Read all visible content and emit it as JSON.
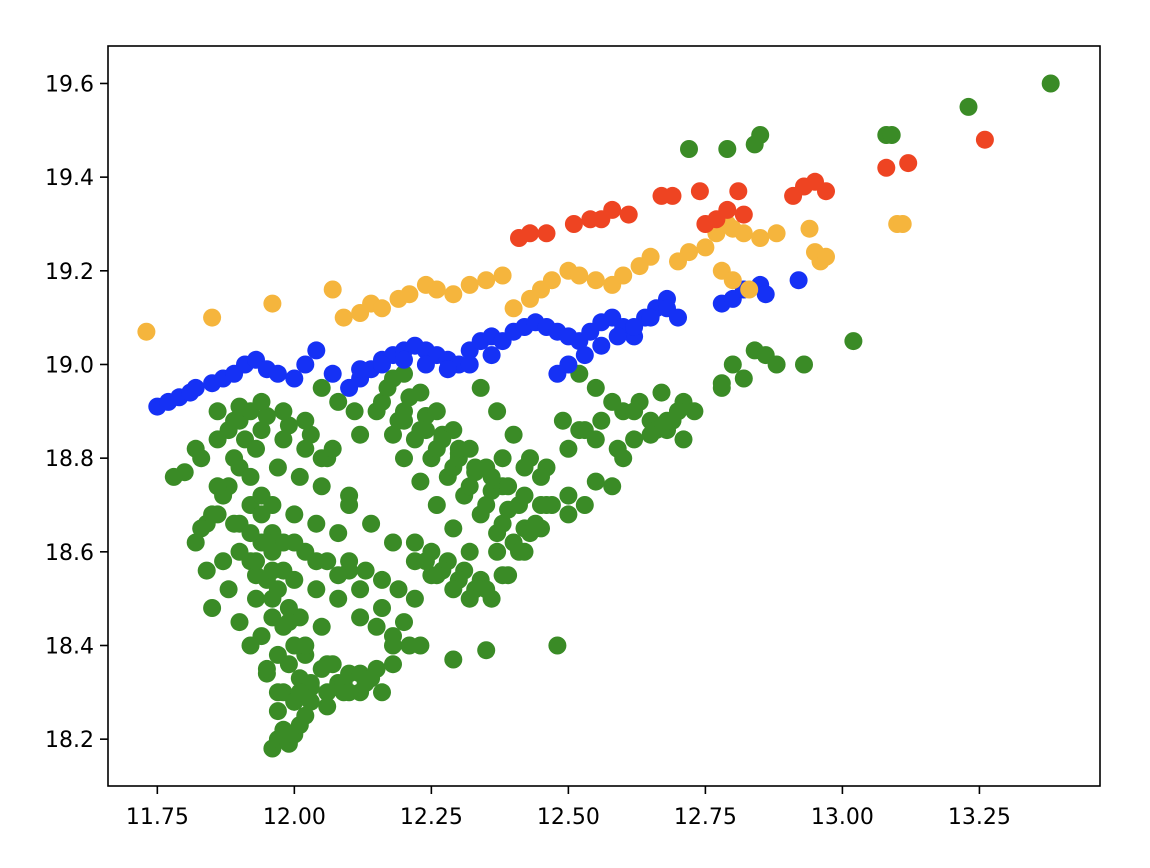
{
  "chart_data": {
    "type": "scatter",
    "title": "",
    "xlabel": "",
    "ylabel": "",
    "xlim": [
      11.66,
      13.47
    ],
    "ylim": [
      18.1,
      19.68
    ],
    "grid": false,
    "legend": "none",
    "x_ticks": [
      {
        "value": 11.75,
        "label": "11.75"
      },
      {
        "value": 12.0,
        "label": "12.00"
      },
      {
        "value": 12.25,
        "label": "12.25"
      },
      {
        "value": 12.5,
        "label": "12.50"
      },
      {
        "value": 12.75,
        "label": "12.75"
      },
      {
        "value": 13.0,
        "label": "13.00"
      },
      {
        "value": 13.25,
        "label": "13.25"
      }
    ],
    "y_ticks": [
      {
        "value": 18.2,
        "label": "18.2"
      },
      {
        "value": 18.4,
        "label": "18.4"
      },
      {
        "value": 18.6,
        "label": "18.6"
      },
      {
        "value": 18.8,
        "label": "18.8"
      },
      {
        "value": 19.0,
        "label": "19.0"
      },
      {
        "value": 19.2,
        "label": "19.2"
      },
      {
        "value": 19.4,
        "label": "19.4"
      },
      {
        "value": 19.6,
        "label": "19.6"
      }
    ],
    "series": [
      {
        "color": "#3a8b26",
        "x": [
          11.96,
          11.97,
          11.98,
          11.99,
          12.0,
          12.01,
          11.97,
          11.98,
          12.0,
          12.02,
          11.95,
          11.97,
          11.99,
          12.01,
          12.03,
          11.94,
          11.96,
          11.98,
          12.0,
          12.02,
          11.93,
          11.95,
          11.97,
          11.99,
          12.01,
          12.05,
          11.92,
          11.94,
          11.96,
          11.98,
          12.0,
          12.04,
          12.08,
          11.9,
          11.92,
          11.94,
          11.96,
          11.98,
          12.02,
          12.06,
          12.1,
          11.88,
          11.9,
          11.92,
          11.94,
          11.96,
          12.0,
          12.04,
          12.08,
          11.85,
          11.87,
          11.89,
          11.91,
          11.93,
          11.97,
          12.01,
          12.05,
          12.1,
          11.82,
          11.84,
          11.86,
          11.88,
          11.9,
          11.94,
          11.98,
          12.02,
          12.06,
          11.8,
          11.83,
          11.86,
          11.89,
          11.92,
          11.95,
          11.99,
          12.03,
          11.78,
          11.82,
          11.86,
          11.9,
          11.94,
          11.98,
          12.02,
          11.85,
          11.88,
          11.9,
          11.92,
          11.95,
          11.97,
          12.0,
          12.03,
          12.06,
          12.09,
          11.93,
          11.96,
          11.99,
          12.02,
          12.05,
          12.08,
          12.12,
          12.15,
          12.18,
          12.0,
          12.04,
          12.08,
          12.12,
          12.16,
          12.2,
          12.1,
          12.14,
          12.18,
          12.22,
          12.25,
          12.15,
          12.18,
          12.2,
          12.23,
          12.26,
          12.29,
          12.32,
          12.16,
          12.19,
          12.22,
          12.25,
          12.28,
          12.31,
          12.34,
          12.37,
          12.17,
          12.2,
          12.23,
          12.26,
          12.29,
          12.32,
          12.35,
          12.38,
          12.18,
          12.21,
          12.24,
          12.27,
          12.3,
          12.33,
          12.36,
          12.39,
          12.42,
          12.2,
          12.23,
          12.26,
          12.29,
          12.32,
          12.35,
          12.38,
          12.41,
          12.44,
          12.22,
          12.25,
          12.28,
          12.31,
          12.34,
          12.37,
          12.4,
          12.43,
          12.24,
          12.27,
          12.3,
          12.33,
          12.36,
          12.39,
          12.42,
          12.45,
          12.26,
          12.29,
          12.32,
          12.35,
          12.38,
          12.41,
          12.44,
          12.47,
          12.34,
          12.37,
          12.4,
          12.43,
          12.46,
          12.5,
          12.53,
          12.56,
          12.6,
          12.63,
          12.67,
          12.7,
          12.52,
          12.55,
          12.58,
          12.62,
          12.65,
          12.68,
          12.71,
          12.49,
          12.52,
          12.55,
          12.59,
          12.62,
          12.66,
          12.69,
          12.3,
          12.33,
          12.36,
          12.39,
          12.42,
          12.45,
          12.1,
          12.13,
          12.16,
          12.19,
          12.22,
          12.12,
          12.15,
          12.18,
          12.21,
          12.07,
          12.1,
          12.13,
          12.16,
          12.03,
          12.06,
          12.09,
          12.12,
          12.05,
          12.08,
          12.11,
          12.23,
          12.29,
          12.35,
          12.48,
          12.5,
          12.53,
          12.58,
          12.68,
          12.71,
          12.73,
          12.78,
          12.8,
          12.84,
          12.86,
          12.93,
          13.02,
          12.72,
          12.79,
          12.84,
          12.85,
          13.08,
          13.09,
          13.23,
          13.38,
          12.78,
          12.82,
          12.88,
          12.7,
          12.46,
          12.5,
          12.55,
          12.6,
          12.65,
          12.05,
          12.07,
          12.12,
          12.2,
          12.24,
          12.27,
          12.3,
          12.38,
          12.42,
          12.45,
          12.01,
          12.06,
          12.1,
          12.14,
          12.18,
          11.83,
          11.86,
          11.89,
          11.92,
          11.95,
          11.84,
          11.87,
          11.9,
          11.93,
          11.96
        ],
        "y": [
          18.18,
          18.2,
          18.22,
          18.19,
          18.21,
          18.23,
          18.26,
          18.3,
          18.28,
          18.25,
          18.34,
          18.38,
          18.36,
          18.33,
          18.31,
          18.42,
          18.46,
          18.44,
          18.4,
          18.38,
          18.5,
          18.54,
          18.52,
          18.48,
          18.46,
          18.44,
          18.58,
          18.62,
          18.6,
          18.56,
          18.54,
          18.52,
          18.5,
          18.66,
          18.7,
          18.68,
          18.64,
          18.62,
          18.6,
          18.58,
          18.56,
          18.74,
          18.78,
          18.76,
          18.72,
          18.7,
          18.68,
          18.66,
          18.64,
          18.68,
          18.72,
          18.8,
          18.84,
          18.82,
          18.78,
          18.76,
          18.74,
          18.72,
          18.62,
          18.66,
          18.74,
          18.86,
          18.88,
          18.86,
          18.84,
          18.82,
          18.8,
          18.77,
          18.8,
          18.84,
          18.88,
          18.9,
          18.89,
          18.87,
          18.85,
          18.76,
          18.82,
          18.9,
          18.91,
          18.92,
          18.9,
          18.88,
          18.48,
          18.52,
          18.45,
          18.4,
          18.35,
          18.3,
          18.28,
          18.32,
          18.36,
          18.3,
          18.55,
          18.5,
          18.45,
          18.4,
          18.35,
          18.32,
          18.3,
          18.35,
          18.4,
          18.62,
          18.58,
          18.55,
          18.52,
          18.48,
          18.45,
          18.7,
          18.66,
          18.62,
          18.58,
          18.55,
          18.9,
          18.85,
          18.8,
          18.75,
          18.7,
          18.65,
          18.6,
          18.92,
          18.88,
          18.84,
          18.8,
          18.76,
          18.72,
          18.68,
          18.64,
          18.95,
          18.9,
          18.86,
          18.82,
          18.78,
          18.74,
          18.7,
          18.66,
          18.97,
          18.93,
          18.89,
          18.85,
          18.81,
          18.77,
          18.73,
          18.69,
          18.65,
          18.98,
          18.94,
          18.9,
          18.86,
          18.82,
          18.78,
          18.74,
          18.7,
          18.66,
          18.62,
          18.6,
          18.58,
          18.56,
          18.54,
          18.6,
          18.62,
          18.64,
          18.58,
          18.56,
          18.54,
          18.52,
          18.5,
          18.55,
          18.6,
          18.65,
          18.55,
          18.52,
          18.5,
          18.52,
          18.55,
          18.6,
          18.65,
          18.7,
          18.95,
          18.9,
          18.85,
          18.8,
          18.78,
          18.82,
          18.86,
          18.88,
          18.9,
          18.92,
          18.94,
          18.9,
          18.98,
          18.95,
          18.92,
          18.9,
          18.88,
          18.86,
          18.84,
          18.88,
          18.86,
          18.84,
          18.82,
          18.84,
          18.86,
          18.88,
          18.8,
          18.78,
          18.76,
          18.74,
          18.72,
          18.7,
          18.58,
          18.56,
          18.54,
          18.52,
          18.5,
          18.46,
          18.44,
          18.42,
          18.4,
          18.36,
          18.34,
          18.32,
          18.3,
          18.28,
          18.3,
          18.32,
          18.34,
          18.95,
          18.92,
          18.9,
          18.4,
          18.37,
          18.39,
          18.4,
          18.72,
          18.7,
          18.74,
          18.88,
          18.92,
          18.9,
          18.96,
          19.0,
          19.03,
          19.02,
          19.0,
          19.05,
          19.46,
          19.46,
          19.47,
          19.49,
          19.49,
          19.49,
          19.55,
          19.6,
          18.95,
          18.97,
          19.0,
          18.9,
          18.7,
          18.68,
          18.75,
          18.8,
          18.85,
          18.8,
          18.82,
          18.85,
          18.88,
          18.86,
          18.84,
          18.82,
          18.8,
          18.78,
          18.76,
          18.3,
          18.27,
          18.3,
          18.33,
          18.36,
          18.65,
          18.68,
          18.66,
          18.64,
          18.62,
          18.56,
          18.58,
          18.6,
          18.58,
          18.56
        ]
      },
      {
        "color": "#1531f5",
        "x": [
          11.75,
          11.77,
          11.79,
          11.81,
          11.82,
          11.85,
          11.87,
          11.89,
          11.91,
          11.93,
          11.95,
          11.97,
          12.0,
          12.02,
          12.04,
          12.1,
          12.12,
          12.14,
          12.16,
          12.18,
          12.2,
          12.22,
          12.24,
          12.26,
          12.28,
          12.3,
          12.32,
          12.34,
          12.36,
          12.38,
          12.4,
          12.42,
          12.44,
          12.46,
          12.48,
          12.5,
          12.52,
          12.54,
          12.56,
          12.58,
          12.6,
          12.62,
          12.64,
          12.66,
          12.68,
          12.7,
          12.48,
          12.5,
          12.53,
          12.56,
          12.59,
          12.62,
          12.65,
          12.68,
          12.78,
          12.8,
          12.82,
          12.85,
          12.86,
          12.92,
          12.07,
          12.12,
          12.16,
          12.2,
          12.24,
          12.28,
          12.32,
          12.36
        ],
        "y": [
          18.91,
          18.92,
          18.93,
          18.94,
          18.95,
          18.96,
          18.97,
          18.98,
          19.0,
          19.01,
          18.99,
          18.98,
          18.97,
          19.0,
          19.03,
          18.95,
          18.97,
          18.99,
          19.01,
          19.02,
          19.03,
          19.04,
          19.03,
          19.02,
          19.01,
          19.0,
          19.03,
          19.05,
          19.06,
          19.05,
          19.07,
          19.08,
          19.09,
          19.08,
          19.07,
          19.06,
          19.05,
          19.07,
          19.09,
          19.1,
          19.08,
          19.06,
          19.1,
          19.12,
          19.14,
          19.1,
          18.98,
          19.0,
          19.02,
          19.04,
          19.06,
          19.08,
          19.1,
          19.12,
          19.13,
          19.14,
          19.16,
          19.17,
          19.15,
          19.18,
          18.98,
          18.99,
          19.0,
          19.01,
          19.0,
          18.99,
          19.0,
          19.02
        ]
      },
      {
        "color": "#f5b53d",
        "x": [
          11.73,
          11.85,
          11.96,
          12.07,
          12.09,
          12.12,
          12.14,
          12.16,
          12.19,
          12.21,
          12.24,
          12.26,
          12.29,
          12.32,
          12.35,
          12.38,
          12.4,
          12.43,
          12.45,
          12.47,
          12.5,
          12.52,
          12.55,
          12.58,
          12.6,
          12.63,
          12.65,
          12.7,
          12.72,
          12.75,
          12.77,
          12.79,
          12.8,
          12.82,
          12.85,
          12.88,
          12.94,
          12.95,
          12.96,
          12.97,
          13.1,
          13.11,
          12.78,
          12.8,
          12.83
        ],
        "y": [
          19.07,
          19.1,
          19.13,
          19.16,
          19.1,
          19.11,
          19.13,
          19.12,
          19.14,
          19.15,
          19.17,
          19.16,
          19.15,
          19.17,
          19.18,
          19.19,
          19.12,
          19.14,
          19.16,
          19.18,
          19.2,
          19.19,
          19.18,
          19.17,
          19.19,
          19.21,
          19.23,
          19.22,
          19.24,
          19.25,
          19.28,
          19.3,
          19.29,
          19.28,
          19.27,
          19.28,
          19.29,
          19.24,
          19.22,
          19.23,
          19.3,
          19.3,
          19.2,
          19.18,
          19.16
        ]
      },
      {
        "color": "#ee4422",
        "x": [
          12.41,
          12.43,
          12.46,
          12.51,
          12.54,
          12.56,
          12.58,
          12.61,
          12.67,
          12.69,
          12.74,
          12.75,
          12.77,
          12.79,
          12.82,
          12.81,
          12.91,
          12.93,
          12.95,
          12.97,
          13.08,
          13.12,
          13.26
        ],
        "y": [
          19.27,
          19.28,
          19.28,
          19.3,
          19.31,
          19.31,
          19.33,
          19.32,
          19.36,
          19.36,
          19.37,
          19.3,
          19.31,
          19.33,
          19.32,
          19.37,
          19.36,
          19.38,
          19.39,
          19.37,
          19.42,
          19.43,
          19.48
        ]
      }
    ]
  }
}
